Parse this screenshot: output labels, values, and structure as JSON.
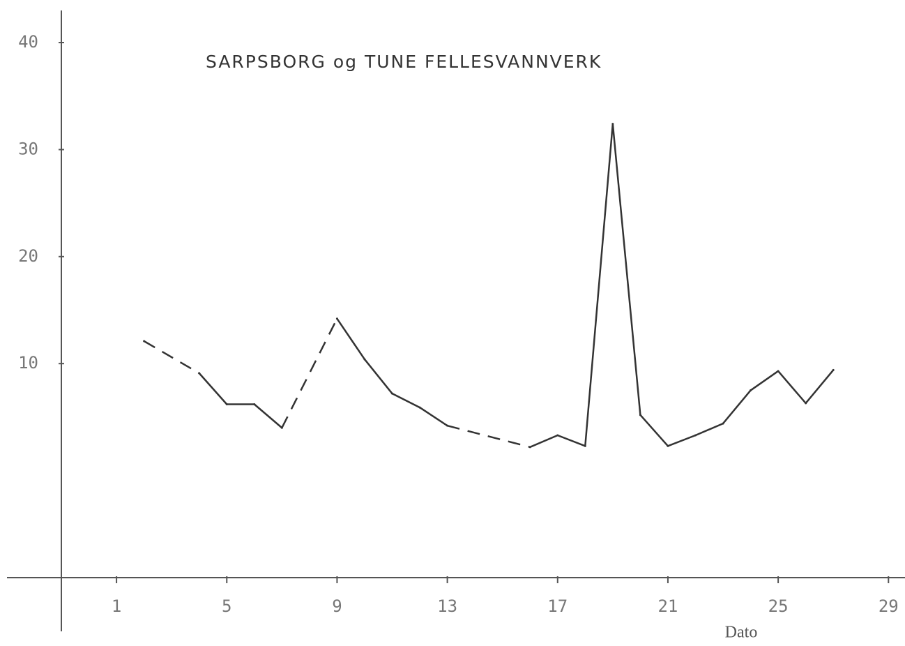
{
  "chart_data": {
    "type": "line",
    "title": "SARPSBORG  og TUNE FELLESVANNVERK",
    "x_label": "Dato",
    "x": [
      2,
      4,
      5,
      6,
      7,
      9,
      10,
      11,
      12,
      13,
      16,
      17,
      18,
      19,
      20,
      21,
      22,
      23,
      24,
      25,
      26,
      27
    ],
    "values": [
      12.1,
      9.1,
      6.2,
      6.2,
      4.0,
      14.2,
      10.4,
      7.2,
      5.9,
      4.2,
      2.2,
      3.3,
      2.3,
      32.4,
      5.2,
      2.3,
      3.3,
      4.4,
      7.5,
      9.3,
      6.3,
      9.4
    ],
    "color": "#333333",
    "dashed_gaps": true,
    "xlim": [
      -1,
      29.6
    ],
    "xticks": [
      1,
      5,
      9,
      13,
      17,
      21,
      25,
      29
    ],
    "ylim": [
      -10,
      43
    ],
    "yticks": [
      10,
      20,
      30,
      40
    ]
  }
}
